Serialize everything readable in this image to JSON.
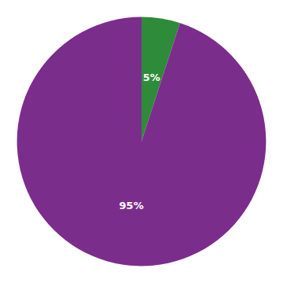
{
  "chart_data": {
    "type": "pie",
    "values": [
      5,
      95
    ],
    "value_labels": [
      "5%",
      "95%"
    ],
    "data_labels": true,
    "colors": [
      "#2e8b3a",
      "#7b2d8b"
    ]
  }
}
